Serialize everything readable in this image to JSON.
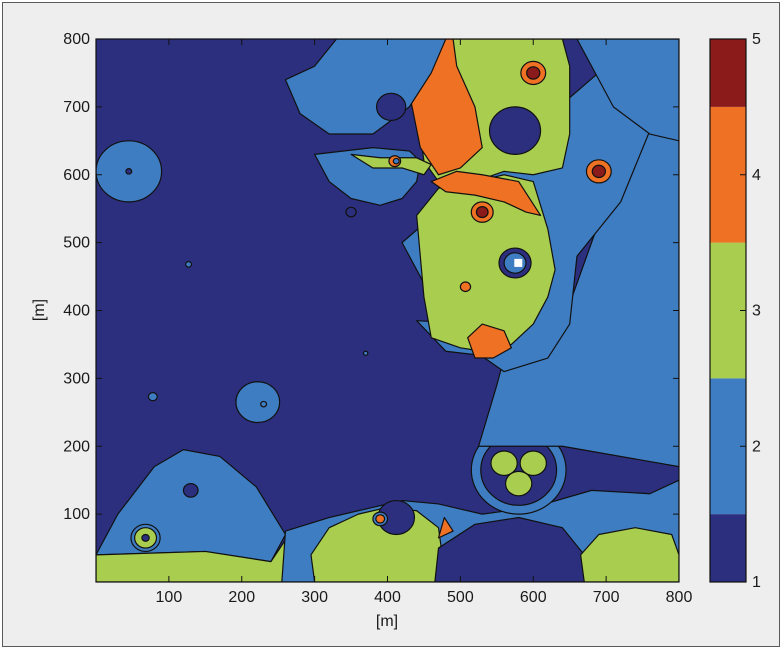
{
  "chart_data": {
    "type": "heatmap",
    "title": "",
    "xlabel": "[m]",
    "ylabel": "[m]",
    "xlim": [
      0,
      800
    ],
    "ylim": [
      0,
      800
    ],
    "x_ticks": [
      100,
      200,
      300,
      400,
      500,
      600,
      700,
      800
    ],
    "y_ticks": [
      100,
      200,
      300,
      400,
      500,
      600,
      700,
      800
    ],
    "colorbar": {
      "range": [
        1,
        5
      ],
      "ticks": [
        1,
        2,
        3,
        4,
        5
      ],
      "levels": [
        {
          "value": 1,
          "color": "#2b2f7e"
        },
        {
          "value": 2,
          "color": "#3f7dc2"
        },
        {
          "value": 3,
          "color": "#a9cd4f"
        },
        {
          "value": 4,
          "color": "#ee7124"
        },
        {
          "value": 5,
          "color": "#8b1a1a"
        }
      ]
    },
    "background_level": 1,
    "regions": [
      {
        "level": 2,
        "shape": "poly",
        "pts": [
          [
            0,
            40
          ],
          [
            30,
            100
          ],
          [
            80,
            170
          ],
          [
            120,
            195
          ],
          [
            170,
            185
          ],
          [
            220,
            140
          ],
          [
            260,
            70
          ],
          [
            240,
            30
          ],
          [
            150,
            45
          ],
          [
            60,
            42
          ]
        ]
      },
      {
        "level": 3,
        "shape": "poly",
        "pts": [
          [
            0,
            0
          ],
          [
            0,
            40
          ],
          [
            60,
            42
          ],
          [
            150,
            45
          ],
          [
            240,
            30
          ],
          [
            265,
            70
          ],
          [
            255,
            0
          ]
        ]
      },
      {
        "level": 1,
        "shape": "circle",
        "cx": 130,
        "cy": 135,
        "r": 10
      },
      {
        "level": 2,
        "shape": "circle",
        "cx": 68,
        "cy": 65,
        "r": 20
      },
      {
        "level": 3,
        "shape": "circle",
        "cx": 68,
        "cy": 65,
        "r": 15
      },
      {
        "level": 1,
        "shape": "circle",
        "cx": 68,
        "cy": 65,
        "r": 5
      },
      {
        "level": 2,
        "shape": "poly",
        "pts": [
          [
            255,
            0
          ],
          [
            260,
            75
          ],
          [
            320,
            95
          ],
          [
            420,
            120
          ],
          [
            470,
            115
          ],
          [
            530,
            100
          ],
          [
            600,
            110
          ],
          [
            680,
            135
          ],
          [
            760,
            130
          ],
          [
            800,
            150
          ],
          [
            800,
            0
          ]
        ]
      },
      {
        "level": 3,
        "shape": "poly",
        "pts": [
          [
            300,
            0
          ],
          [
            295,
            40
          ],
          [
            320,
            80
          ],
          [
            360,
            100
          ],
          [
            400,
            110
          ],
          [
            440,
            105
          ],
          [
            470,
            80
          ],
          [
            475,
            40
          ],
          [
            465,
            0
          ]
        ]
      },
      {
        "level": 1,
        "shape": "poly",
        "pts": [
          [
            465,
            0
          ],
          [
            470,
            50
          ],
          [
            520,
            85
          ],
          [
            580,
            95
          ],
          [
            640,
            80
          ],
          [
            670,
            40
          ],
          [
            675,
            0
          ]
        ]
      },
      {
        "level": 3,
        "shape": "poly",
        "pts": [
          [
            670,
            0
          ],
          [
            665,
            40
          ],
          [
            690,
            70
          ],
          [
            740,
            80
          ],
          [
            790,
            70
          ],
          [
            800,
            40
          ],
          [
            800,
            0
          ]
        ]
      },
      {
        "level": 1,
        "shape": "circle",
        "cx": 412,
        "cy": 95,
        "r": 25
      },
      {
        "level": 2,
        "shape": "circle",
        "cx": 390,
        "cy": 93,
        "r": 10
      },
      {
        "level": 4,
        "shape": "circle",
        "cx": 390,
        "cy": 93,
        "r": 6
      },
      {
        "level": 4,
        "shape": "poly",
        "pts": [
          [
            470,
            65
          ],
          [
            478,
            95
          ],
          [
            490,
            75
          ]
        ]
      },
      {
        "level": 2,
        "shape": "circle",
        "cx": 580,
        "cy": 165,
        "r": 65
      },
      {
        "level": 1,
        "shape": "circle",
        "cx": 580,
        "cy": 165,
        "r": 52
      },
      {
        "level": 3,
        "shape": "circle",
        "cx": 560,
        "cy": 175,
        "r": 18
      },
      {
        "level": 3,
        "shape": "circle",
        "cx": 600,
        "cy": 175,
        "r": 18
      },
      {
        "level": 3,
        "shape": "circle",
        "cx": 580,
        "cy": 145,
        "r": 18
      },
      {
        "level": 2,
        "shape": "poly",
        "pts": [
          [
            525,
            200
          ],
          [
            550,
            290
          ],
          [
            560,
            330
          ],
          [
            480,
            340
          ],
          [
            440,
            385
          ],
          [
            520,
            380
          ],
          [
            640,
            380
          ],
          [
            700,
            560
          ],
          [
            760,
            665
          ],
          [
            800,
            760
          ],
          [
            800,
            170
          ],
          [
            640,
            200
          ]
        ]
      },
      {
        "level": 2,
        "shape": "circle",
        "cx": 222,
        "cy": 265,
        "r": 30
      },
      {
        "level": 2,
        "shape": "circle",
        "cx": 78,
        "cy": 273,
        "r": 6
      },
      {
        "level": 2,
        "shape": "circle",
        "cx": 230,
        "cy": 262,
        "r": 4
      },
      {
        "level": 2,
        "shape": "circle",
        "cx": 370,
        "cy": 337,
        "r": 3
      },
      {
        "level": 2,
        "shape": "poly",
        "pts": [
          [
            420,
            500
          ],
          [
            460,
            420
          ],
          [
            520,
            340
          ],
          [
            560,
            310
          ],
          [
            620,
            330
          ],
          [
            650,
            380
          ],
          [
            660,
            480
          ],
          [
            720,
            560
          ],
          [
            760,
            665
          ],
          [
            800,
            780
          ],
          [
            750,
            800
          ],
          [
            700,
            760
          ]
        ]
      },
      {
        "level": 3,
        "shape": "poly",
        "pts": [
          [
            460,
            360
          ],
          [
            450,
            420
          ],
          [
            440,
            540
          ],
          [
            470,
            580
          ],
          [
            520,
            590
          ],
          [
            560,
            600
          ],
          [
            600,
            590
          ],
          [
            620,
            520
          ],
          [
            630,
            460
          ],
          [
            620,
            420
          ],
          [
            600,
            380
          ],
          [
            570,
            350
          ],
          [
            530,
            340
          ],
          [
            500,
            345
          ]
        ]
      },
      {
        "level": 3,
        "shape": "poly",
        "pts": [
          [
            430,
            800
          ],
          [
            410,
            780
          ],
          [
            440,
            700
          ],
          [
            450,
            620
          ],
          [
            470,
            590
          ],
          [
            520,
            590
          ],
          [
            560,
            605
          ],
          [
            600,
            600
          ],
          [
            640,
            610
          ],
          [
            650,
            660
          ],
          [
            650,
            760
          ],
          [
            640,
            800
          ]
        ]
      },
      {
        "level": 4,
        "shape": "poly",
        "pts": [
          [
            530,
            380
          ],
          [
            510,
            360
          ],
          [
            520,
            330
          ],
          [
            545,
            330
          ],
          [
            570,
            345
          ],
          [
            560,
            370
          ]
        ]
      },
      {
        "level": 1,
        "shape": "circle",
        "cx": 575,
        "cy": 470,
        "r": 22
      },
      {
        "level": 2,
        "shape": "circle",
        "cx": 575,
        "cy": 470,
        "r": 15
      },
      {
        "level": 4,
        "shape": "circle",
        "cx": 507,
        "cy": 435,
        "r": 7
      },
      {
        "level": 4,
        "shape": "poly",
        "pts": [
          [
            460,
            590
          ],
          [
            480,
            575
          ],
          [
            520,
            570
          ],
          [
            560,
            560
          ],
          [
            590,
            545
          ],
          [
            610,
            540
          ],
          [
            580,
            590
          ],
          [
            530,
            600
          ],
          [
            495,
            605
          ]
        ]
      },
      {
        "level": 4,
        "shape": "circle",
        "cx": 530,
        "cy": 545,
        "r": 15
      },
      {
        "level": 5,
        "shape": "circle",
        "cx": 530,
        "cy": 545,
        "r": 8
      },
      {
        "level": 4,
        "shape": "poly",
        "pts": [
          [
            420,
            800
          ],
          [
            430,
            720
          ],
          [
            445,
            640
          ],
          [
            470,
            600
          ],
          [
            500,
            610
          ],
          [
            530,
            640
          ],
          [
            520,
            700
          ],
          [
            495,
            760
          ],
          [
            490,
            800
          ]
        ]
      },
      {
        "level": 4,
        "shape": "circle",
        "cx": 600,
        "cy": 750,
        "r": 17
      },
      {
        "level": 5,
        "shape": "circle",
        "cx": 600,
        "cy": 750,
        "r": 9
      },
      {
        "level": 4,
        "shape": "circle",
        "cx": 690,
        "cy": 605,
        "r": 17
      },
      {
        "level": 5,
        "shape": "circle",
        "cx": 690,
        "cy": 605,
        "r": 9
      },
      {
        "level": 1,
        "shape": "circle",
        "cx": 575,
        "cy": 665,
        "r": 35
      },
      {
        "level": 2,
        "shape": "poly",
        "pts": [
          [
            260,
            740
          ],
          [
            300,
            760
          ],
          [
            330,
            800
          ],
          [
            480,
            800
          ],
          [
            460,
            750
          ],
          [
            430,
            700
          ],
          [
            380,
            660
          ],
          [
            320,
            660
          ],
          [
            280,
            690
          ]
        ]
      },
      {
        "level": 1,
        "shape": "circle",
        "cx": 405,
        "cy": 700,
        "r": 20
      },
      {
        "level": 2,
        "shape": "poly",
        "pts": [
          [
            300,
            630
          ],
          [
            320,
            590
          ],
          [
            350,
            565
          ],
          [
            390,
            555
          ],
          [
            420,
            565
          ],
          [
            440,
            590
          ],
          [
            445,
            620
          ],
          [
            430,
            635
          ],
          [
            380,
            640
          ]
        ]
      },
      {
        "level": 3,
        "shape": "poly",
        "pts": [
          [
            350,
            630
          ],
          [
            390,
            625
          ],
          [
            440,
            625
          ],
          [
            460,
            615
          ],
          [
            450,
            600
          ],
          [
            420,
            610
          ],
          [
            380,
            610
          ]
        ]
      },
      {
        "level": 2,
        "shape": "circle",
        "cx": 45,
        "cy": 605,
        "r": 45
      },
      {
        "level": 1,
        "shape": "circle",
        "cx": 45,
        "cy": 605,
        "r": 4
      },
      {
        "level": 1,
        "shape": "circle",
        "cx": 350,
        "cy": 545,
        "r": 7
      },
      {
        "level": 2,
        "shape": "circle",
        "cx": 127,
        "cy": 468,
        "r": 4
      },
      {
        "level": 4,
        "shape": "circle",
        "cx": 410,
        "cy": 620,
        "r": 8
      },
      {
        "level": 2,
        "shape": "circle",
        "cx": 412,
        "cy": 620,
        "r": 4
      },
      {
        "level": 2,
        "shape": "poly",
        "pts": [
          [
            660,
            800
          ],
          [
            680,
            760
          ],
          [
            710,
            700
          ],
          [
            760,
            660
          ],
          [
            800,
            650
          ],
          [
            800,
            800
          ]
        ]
      }
    ]
  }
}
